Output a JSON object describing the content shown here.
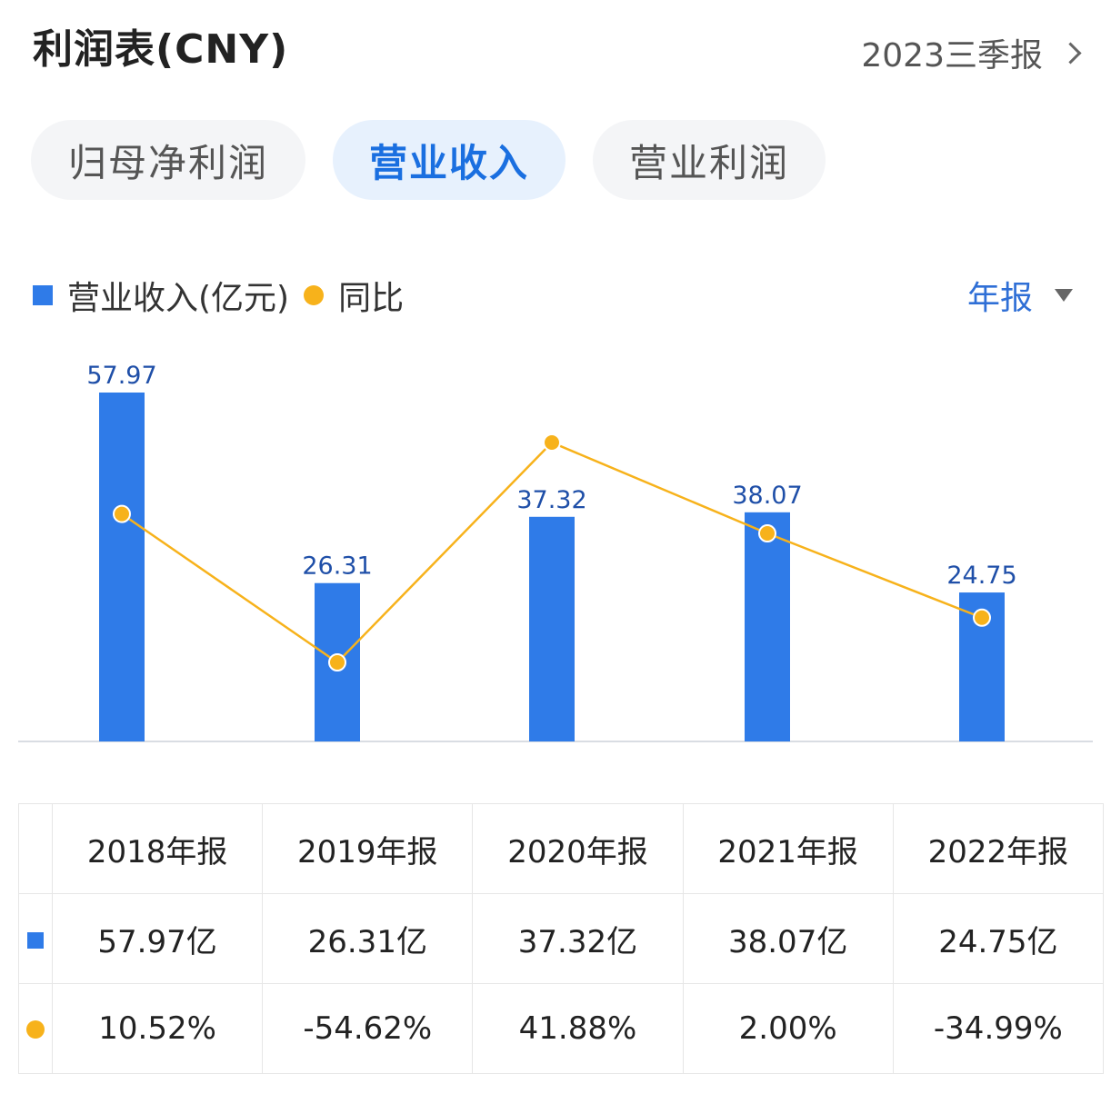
{
  "header": {
    "title": "利润表(CNY)",
    "period": "2023三季报"
  },
  "tabs": [
    {
      "label": "归母净利润",
      "active": false
    },
    {
      "label": "营业收入",
      "active": true
    },
    {
      "label": "营业利润",
      "active": false
    }
  ],
  "legend": {
    "bar_label": "营业收入(亿元)",
    "line_label": "同比",
    "period_selector": "年报"
  },
  "colors": {
    "bar": "#2f7be8",
    "line": "#f7b21b",
    "positive": "#d23a3a",
    "negative": "#1e8a6e",
    "active_tab": "#1a6fe0"
  },
  "chart_data": {
    "type": "bar",
    "categories": [
      "2018年报",
      "2019年报",
      "2020年报",
      "2021年报",
      "2022年报"
    ],
    "series": [
      {
        "name": "营业收入(亿元)",
        "type": "bar",
        "values": [
          57.97,
          26.31,
          37.32,
          38.07,
          24.75
        ]
      },
      {
        "name": "同比",
        "type": "line",
        "values": [
          10.52,
          -54.62,
          41.88,
          2.0,
          -34.99
        ]
      }
    ],
    "bar_labels": [
      "57.97",
      "26.31",
      "37.32",
      "38.07",
      "24.75"
    ],
    "ylim": [
      0,
      57.97
    ],
    "grid": false
  },
  "table": {
    "headers": [
      "2018年报",
      "2019年报",
      "2020年报",
      "2021年报",
      "2022年报"
    ],
    "revenue": [
      "57.97亿",
      "26.31亿",
      "37.32亿",
      "38.07亿",
      "24.75亿"
    ],
    "yoy": [
      "10.52%",
      "-54.62%",
      "41.88%",
      "2.00%",
      "-34.99%"
    ]
  }
}
